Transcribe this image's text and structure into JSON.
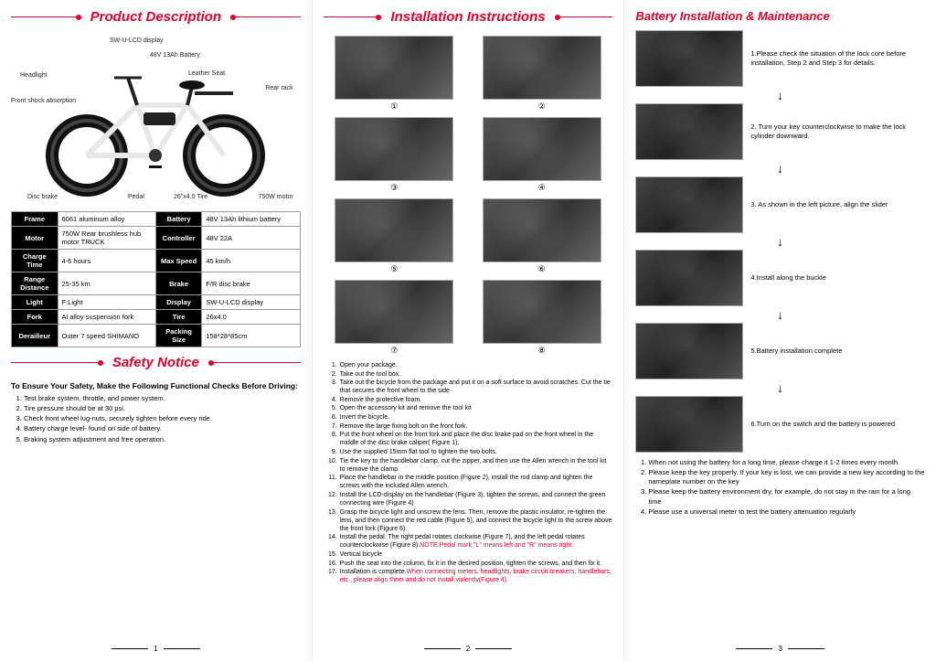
{
  "col1": {
    "title": "Product Description",
    "labels": {
      "display": "SW-U-LCD display",
      "battery": "48V 13Ah Battery",
      "headlight": "Headlight",
      "seat": "Leather Seat",
      "rack": "Rear rack",
      "shock": "Front shock absorption",
      "discbrake": "Disc brake",
      "pedal": "Pedal",
      "tire": "26\"x4.0 Tire",
      "motor": "750W motor"
    },
    "spec_rows": [
      [
        "Frame",
        "6061 aluminum alloy",
        "Battery",
        "48V 13Ah lithium battery"
      ],
      [
        "Motor",
        "750W Rear brushless hub motor TRUCK",
        "Controller",
        "48V 22A"
      ],
      [
        "Charge Time",
        "4-6 hours",
        "Max Speed",
        "45 km/h"
      ],
      [
        "Range Distance",
        "25-35 km",
        "Brake",
        "F/R disc brake"
      ],
      [
        "Light",
        "F:Light",
        "Display",
        "SW-U-LCD display"
      ],
      [
        "Fork",
        "Al alloy suspension fork",
        "Tire",
        "26x4.0"
      ],
      [
        "Derailleur",
        "Outer 7 speed SHIMANO",
        "Packing Size",
        "158*28*85cm"
      ]
    ],
    "safety_title": "Safety Notice",
    "safety_sub": "To Ensure Your Safety, Make the Following Functional Checks Before Driving:",
    "safety_items": [
      "Test brake system, throttle, and power system.",
      "Tire pressure should be at 30 psi.",
      "Check front wheel lug-nuts, securely tighten before every ride.",
      "Battery charge level- found on side of battery.",
      "Braking system adjustment and free operation."
    ],
    "page": "1"
  },
  "col2": {
    "title": "Installation Instructions",
    "circled": [
      "①",
      "②",
      "③",
      "④",
      "⑤",
      "⑥",
      "⑦",
      "⑧"
    ],
    "steps": [
      {
        "n": "1.",
        "t": "Open your package."
      },
      {
        "n": "2.",
        "t": "Take out the tool box."
      },
      {
        "n": "3.",
        "t": "Take out the bicycle from the package and put it on a soft surface to avoid scratches. Cut the tie that secures the front wheel to the side"
      },
      {
        "n": "4.",
        "t": "Remove the protective foam."
      },
      {
        "n": "5.",
        "t": "Open the accessory kit and remove the tool kit"
      },
      {
        "n": "6.",
        "t": "Invert the bicycle."
      },
      {
        "n": "7.",
        "t": "Remove the large fixing bolt on the front fork."
      },
      {
        "n": "8.",
        "t": "Put the front wheel on the front fork and place the disc brake pad on the front wheel in the middle of the disc brake caliper( Figure 1)."
      },
      {
        "n": "9.",
        "t": "Use the supplied 15mm flat tool to tighten the two bolts."
      },
      {
        "n": "10.",
        "t": "Tie the key to the handlebar clamp, cut the zipper, and then use the Allen wrench in the tool kit to remove the clamp."
      },
      {
        "n": "11.",
        "t": "Place the handlebar in the middle position (Figure 2), install the rod clamp and tighten the screws with the included Allen wrench."
      },
      {
        "n": "12.",
        "t": "Install the LCD-display on the handlebar (Figure 3), tighten the screws, and connect the green connecting wire (Figure 4)"
      },
      {
        "n": "13.",
        "t": "Grasp the bicycle light and unscrew the lens. Then, remove the plastic insulator, re-tighten the lens, and then connect the red cable (Figure 5), and connect the bicycle light to the screw above the front fork (Figure 6)."
      },
      {
        "n": "14.",
        "t": "Install the pedal. The right pedal rotates clockwise (Figure 7), and the left pedal rotates counterclockwise (Figure 8).",
        "note": "NOTE:Pedal mark \"L\" means left and \"R\" means right."
      },
      {
        "n": "15.",
        "t": "Vertical bicycle"
      },
      {
        "n": "16.",
        "t": "Push the seat into the column, fix it in the desired position, tighten the screws, and then fix it."
      },
      {
        "n": "17.",
        "t": "Installation is complete.",
        "note": "When connecting meters, headlights, brake circuit breakers, handlebars, etc., please align them and do not install violently(Figure 4)."
      }
    ],
    "page": "2"
  },
  "col3": {
    "title": "Battery Installation & Maintenance",
    "flow": [
      "1.Please check  the situation of the lock core before installation, Step 2 and Step 3 for details.",
      "2. Turn your key counterclockwise to make the lock cylinder downward.",
      "3. As shown in the left picture, align the slider",
      "4.Install along the buckle",
      "5.Battery installation complete",
      "6.Turn on the switch and the battery is powered"
    ],
    "maint": [
      "When not using the battery for a long time, please charge it 1-2 times every month.",
      "Please keep the key properly. If your key is lost, we can provide a new key according to the nameplate number on the key",
      "Please keep the battery environment dry, for example, do not stay in the rain for a long time",
      "Please use a universal meter to test the battery attenuation regularly"
    ],
    "page": "3"
  }
}
